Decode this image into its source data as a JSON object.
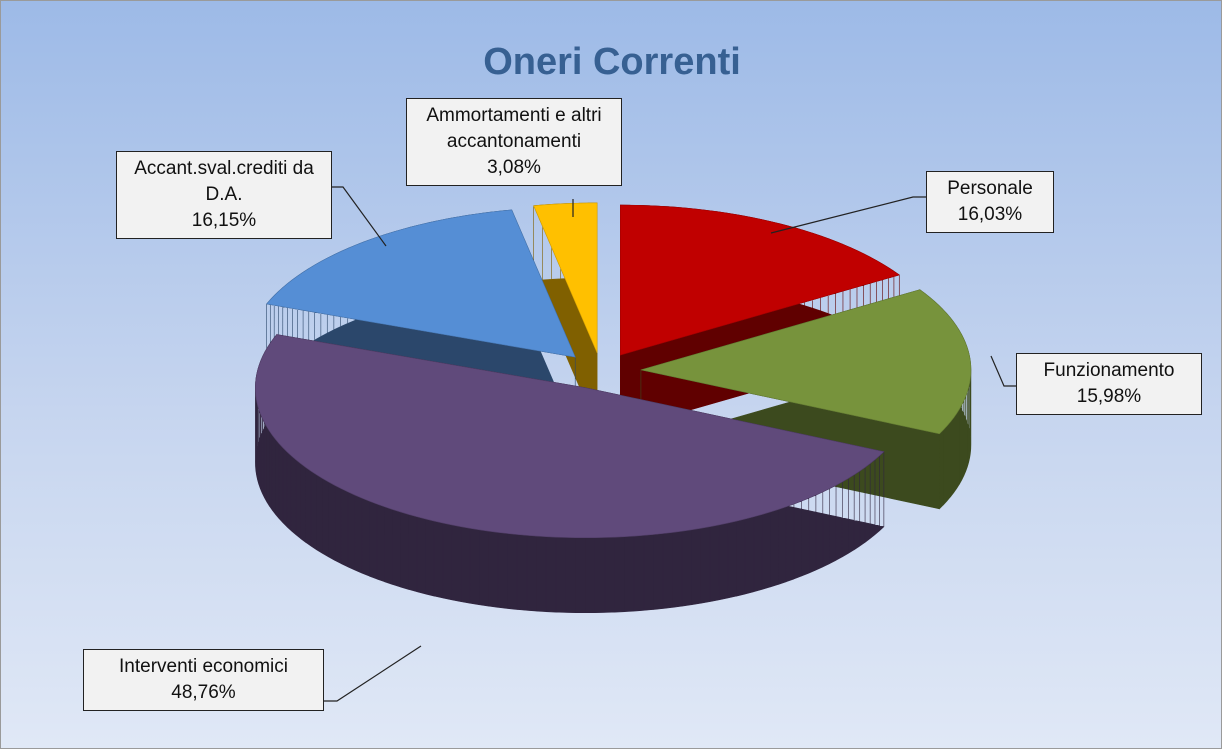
{
  "chart_data": {
    "type": "pie",
    "title": "Oneri Correnti",
    "categories": [
      "Personale",
      "Funzionamento",
      "Interventi economici",
      "Accant.sval.crediti da D.A.",
      "Ammortamenti e altri accantonamenti"
    ],
    "values": [
      16.03,
      15.98,
      48.76,
      16.15,
      3.08
    ],
    "value_labels": [
      "16,03%",
      "15,98%",
      "48,76%",
      "16,15%",
      "3,08%"
    ],
    "colors": [
      "#c00000",
      "#77933c",
      "#604a7b",
      "#558ed5",
      "#ffc000"
    ]
  }
}
